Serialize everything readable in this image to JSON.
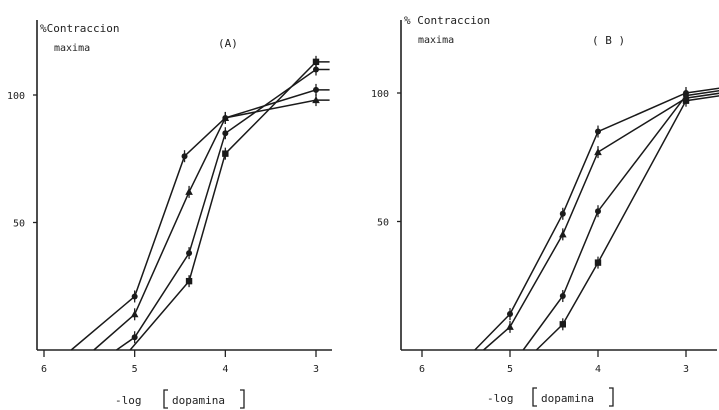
{
  "chart_data": [
    {
      "type": "line",
      "panel_label": "(A)",
      "ylabel_lines": [
        "%Contraccion",
        "maxima"
      ],
      "xlabel": {
        "prefix": "-log",
        "name": "dopamina"
      },
      "x_ticks": [
        "6",
        "5",
        "4",
        "3"
      ],
      "y_ticks": [
        "50",
        "100"
      ],
      "xlim": [
        6.2,
        2.8
      ],
      "ylim": [
        0,
        128
      ],
      "series": [
        {
          "marker": "dot",
          "x": [
            5.7,
            5.0,
            4.45,
            4.0,
            3.0,
            2.85
          ],
          "y": [
            0,
            21,
            76,
            91,
            102,
            102
          ]
        },
        {
          "marker": "triangle",
          "x": [
            5.45,
            5.0,
            4.4,
            4.0,
            3.0,
            2.85
          ],
          "y": [
            0,
            14,
            62,
            91,
            98,
            98
          ]
        },
        {
          "marker": "dot",
          "x": [
            5.2,
            5.0,
            4.4,
            4.0,
            3.0,
            2.85
          ],
          "y": [
            0,
            5,
            38,
            85,
            110,
            110
          ]
        },
        {
          "marker": "square",
          "x": [
            5.05,
            4.4,
            4.0,
            3.0,
            2.85
          ],
          "y": [
            0,
            27,
            77,
            113,
            113
          ]
        }
      ]
    },
    {
      "type": "line",
      "panel_label": "( B )",
      "ylabel_lines": [
        "% Contraccion",
        "maxima"
      ],
      "xlabel": {
        "prefix": "-log",
        "name": "dopamina"
      },
      "x_ticks": [
        "6",
        "5",
        "4",
        "3"
      ],
      "y_ticks": [
        "50",
        "100"
      ],
      "xlim": [
        6.2,
        2.6
      ],
      "ylim": [
        0,
        128
      ],
      "series": [
        {
          "marker": "dot",
          "x": [
            5.4,
            5.0,
            4.4,
            4.0,
            3.0,
            2.6
          ],
          "y": [
            0,
            14,
            53,
            85,
            100,
            102
          ]
        },
        {
          "marker": "triangle",
          "x": [
            5.3,
            5.0,
            4.4,
            4.0,
            3.0,
            2.6
          ],
          "y": [
            0,
            9,
            45,
            77,
            98,
            100
          ]
        },
        {
          "marker": "dot",
          "x": [
            4.85,
            4.4,
            4.0,
            3.0,
            2.6
          ],
          "y": [
            0,
            21,
            54,
            99,
            101
          ]
        },
        {
          "marker": "square",
          "x": [
            4.7,
            4.4,
            4.0,
            3.0,
            2.6
          ],
          "y": [
            0,
            10,
            34,
            97,
            99
          ]
        }
      ]
    }
  ]
}
